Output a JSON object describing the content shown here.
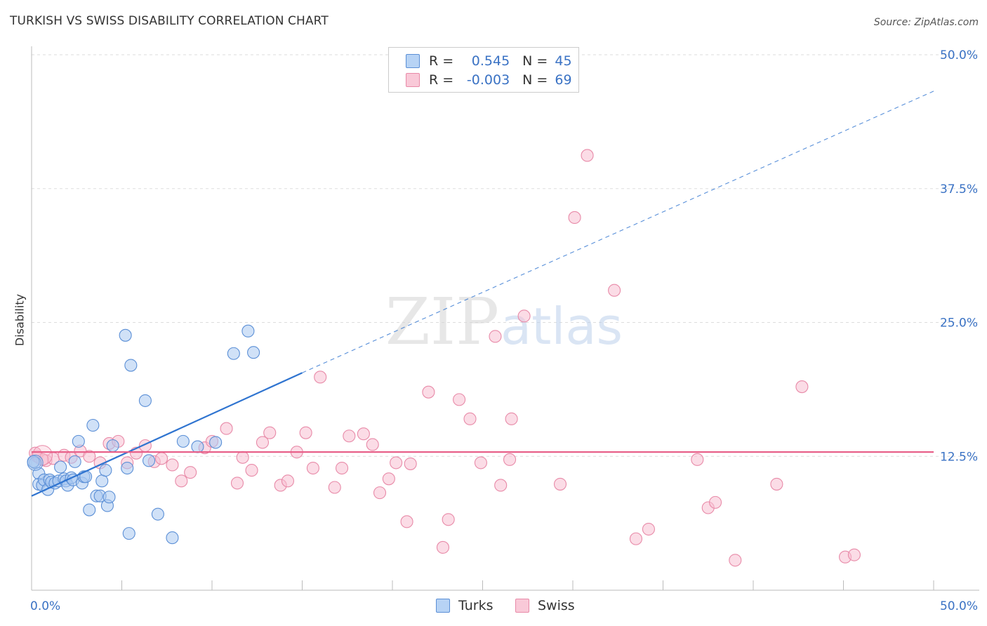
{
  "title": "TURKISH VS SWISS DISABILITY CORRELATION CHART",
  "source": "Source: ZipAtlas.com",
  "watermark": {
    "part1": "ZIP",
    "part2": "atlas"
  },
  "colors": {
    "turks_fill": "#a9c8f0",
    "turks_stroke": "#5b8fd6",
    "turks_line": "#2f74d0",
    "swiss_fill": "#f8c0d2",
    "swiss_stroke": "#e88aa8",
    "swiss_line": "#e8618a",
    "axis_text": "#3a72c4"
  },
  "legend": {
    "turks": {
      "r_label": "R =",
      "r_value": "0.545",
      "n_label": "N =",
      "n_value": "45"
    },
    "swiss": {
      "r_label": "R =",
      "r_value": "-0.003",
      "n_label": "N =",
      "n_value": "69"
    }
  },
  "chart_data": {
    "type": "scatter",
    "ylabel": "Disability",
    "xlim": [
      0,
      50
    ],
    "ylim": [
      0,
      50
    ],
    "x_tick_labels": [
      "0.0%",
      "50.0%"
    ],
    "y_ticks": [
      12.5,
      25.0,
      37.5,
      50.0
    ],
    "y_tick_labels": [
      "12.5%",
      "25.0%",
      "37.5%",
      "50.0%"
    ],
    "grid": "horizontal-dashed",
    "series": [
      {
        "name": "Turks",
        "trend": {
          "x_start": 0,
          "y_start": 8.8,
          "x_end": 15,
          "y_end": 20.3,
          "extend_to_x": 50,
          "extend_to_y": 46.6
        },
        "points": [
          [
            0.2,
            11.9
          ],
          [
            0.4,
            10.9
          ],
          [
            0.4,
            9.9
          ],
          [
            0.6,
            9.8
          ],
          [
            0.7,
            10.3
          ],
          [
            0.9,
            9.4
          ],
          [
            1.0,
            10.3
          ],
          [
            1.1,
            10.1
          ],
          [
            1.3,
            10.0
          ],
          [
            1.5,
            10.2
          ],
          [
            1.6,
            11.5
          ],
          [
            1.8,
            10.4
          ],
          [
            1.9,
            10.2
          ],
          [
            2.0,
            9.8
          ],
          [
            2.2,
            10.5
          ],
          [
            2.3,
            10.3
          ],
          [
            2.4,
            12.0
          ],
          [
            2.6,
            13.9
          ],
          [
            2.8,
            10.0
          ],
          [
            2.9,
            10.6
          ],
          [
            3.0,
            10.6
          ],
          [
            3.2,
            7.5
          ],
          [
            3.4,
            15.4
          ],
          [
            3.6,
            8.8
          ],
          [
            3.8,
            8.8
          ],
          [
            3.9,
            10.2
          ],
          [
            4.1,
            11.2
          ],
          [
            4.2,
            7.9
          ],
          [
            4.3,
            8.7
          ],
          [
            4.5,
            13.5
          ],
          [
            5.2,
            23.8
          ],
          [
            5.3,
            11.4
          ],
          [
            5.4,
            5.3
          ],
          [
            5.5,
            21.0
          ],
          [
            6.3,
            17.7
          ],
          [
            6.5,
            12.1
          ],
          [
            7.0,
            7.1
          ],
          [
            7.8,
            4.9
          ],
          [
            8.4,
            13.9
          ],
          [
            9.2,
            13.4
          ],
          [
            10.2,
            13.8
          ],
          [
            11.2,
            22.1
          ],
          [
            12.0,
            24.2
          ],
          [
            12.3,
            22.2
          ],
          [
            0.1,
            12.0
          ]
        ]
      },
      {
        "name": "Swiss",
        "trend": {
          "x_start": 0,
          "y_start": 12.9,
          "x_end": 50,
          "y_end": 12.9
        },
        "points": [
          [
            0.3,
            12.5
          ],
          [
            0.8,
            12.1
          ],
          [
            1.2,
            12.3
          ],
          [
            1.8,
            12.6
          ],
          [
            2.2,
            12.4
          ],
          [
            2.7,
            13.0
          ],
          [
            3.2,
            12.5
          ],
          [
            3.8,
            11.9
          ],
          [
            4.3,
            13.7
          ],
          [
            4.8,
            13.9
          ],
          [
            5.3,
            11.9
          ],
          [
            5.8,
            12.8
          ],
          [
            6.3,
            13.5
          ],
          [
            6.8,
            12.0
          ],
          [
            7.2,
            12.3
          ],
          [
            7.8,
            11.7
          ],
          [
            8.3,
            10.2
          ],
          [
            8.8,
            11.0
          ],
          [
            9.6,
            13.3
          ],
          [
            10.0,
            13.9
          ],
          [
            10.8,
            15.1
          ],
          [
            11.4,
            10.0
          ],
          [
            11.7,
            12.4
          ],
          [
            12.2,
            11.2
          ],
          [
            12.8,
            13.8
          ],
          [
            13.2,
            14.7
          ],
          [
            13.8,
            9.8
          ],
          [
            14.2,
            10.2
          ],
          [
            14.7,
            12.9
          ],
          [
            15.2,
            14.7
          ],
          [
            15.6,
            11.4
          ],
          [
            16.0,
            19.9
          ],
          [
            16.8,
            9.6
          ],
          [
            17.2,
            11.4
          ],
          [
            17.6,
            14.4
          ],
          [
            18.4,
            14.6
          ],
          [
            18.9,
            13.6
          ],
          [
            19.3,
            9.1
          ],
          [
            19.8,
            10.4
          ],
          [
            20.2,
            11.9
          ],
          [
            20.8,
            6.4
          ],
          [
            21.0,
            11.8
          ],
          [
            22.0,
            18.5
          ],
          [
            22.8,
            4.0
          ],
          [
            23.1,
            6.6
          ],
          [
            23.7,
            17.8
          ],
          [
            24.3,
            16.0
          ],
          [
            24.9,
            11.9
          ],
          [
            25.7,
            23.7
          ],
          [
            26.0,
            9.8
          ],
          [
            26.5,
            12.2
          ],
          [
            26.6,
            16.0
          ],
          [
            27.3,
            25.6
          ],
          [
            29.3,
            9.9
          ],
          [
            30.1,
            34.8
          ],
          [
            30.8,
            40.6
          ],
          [
            32.3,
            28.0
          ],
          [
            33.5,
            4.8
          ],
          [
            34.2,
            5.7
          ],
          [
            36.9,
            12.2
          ],
          [
            37.5,
            7.7
          ],
          [
            37.9,
            8.2
          ],
          [
            39.0,
            2.8
          ],
          [
            41.3,
            9.9
          ],
          [
            42.7,
            19.0
          ],
          [
            45.1,
            3.1
          ],
          [
            45.6,
            3.3
          ],
          [
            0.6,
            12.2
          ],
          [
            0.2,
            12.8
          ]
        ]
      }
    ]
  }
}
